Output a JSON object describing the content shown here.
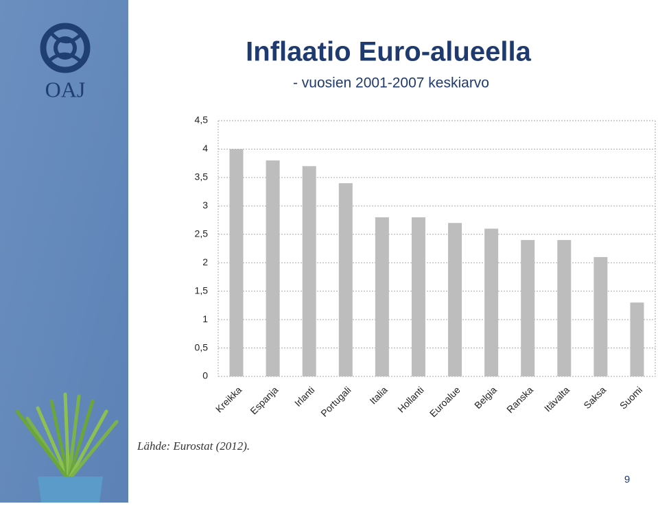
{
  "logo_text": "OAJ",
  "source": "Lähde: Eurostat (2012).",
  "page_number": "9",
  "chart_data": {
    "type": "bar",
    "title": "Inflaatio Euro-alueella",
    "subtitle": "- vuosien 2001-2007 keskiarvo",
    "categories": [
      "Kreikka",
      "Espanja",
      "Irlanti",
      "Portugali",
      "Italia",
      "Hollanti",
      "Euroalue",
      "Belgia",
      "Ranska",
      "Itävalta",
      "Saksa",
      "Suomi"
    ],
    "values": [
      4.0,
      3.8,
      3.7,
      3.4,
      2.8,
      2.8,
      2.7,
      2.6,
      2.4,
      2.4,
      2.1,
      1.3
    ],
    "color": "#bdbdbd",
    "ylim": [
      0,
      4.5
    ],
    "yticks": [
      0,
      {
        "value": 0.5,
        "label": "0,5"
      },
      1,
      {
        "value": 1.5,
        "label": "1,5"
      },
      2,
      {
        "value": 2.5,
        "label": "2,5"
      },
      3,
      {
        "value": 3.5,
        "label": "3,5"
      },
      4,
      {
        "value": 4.5,
        "label": "4,5"
      }
    ],
    "grid": true
  }
}
